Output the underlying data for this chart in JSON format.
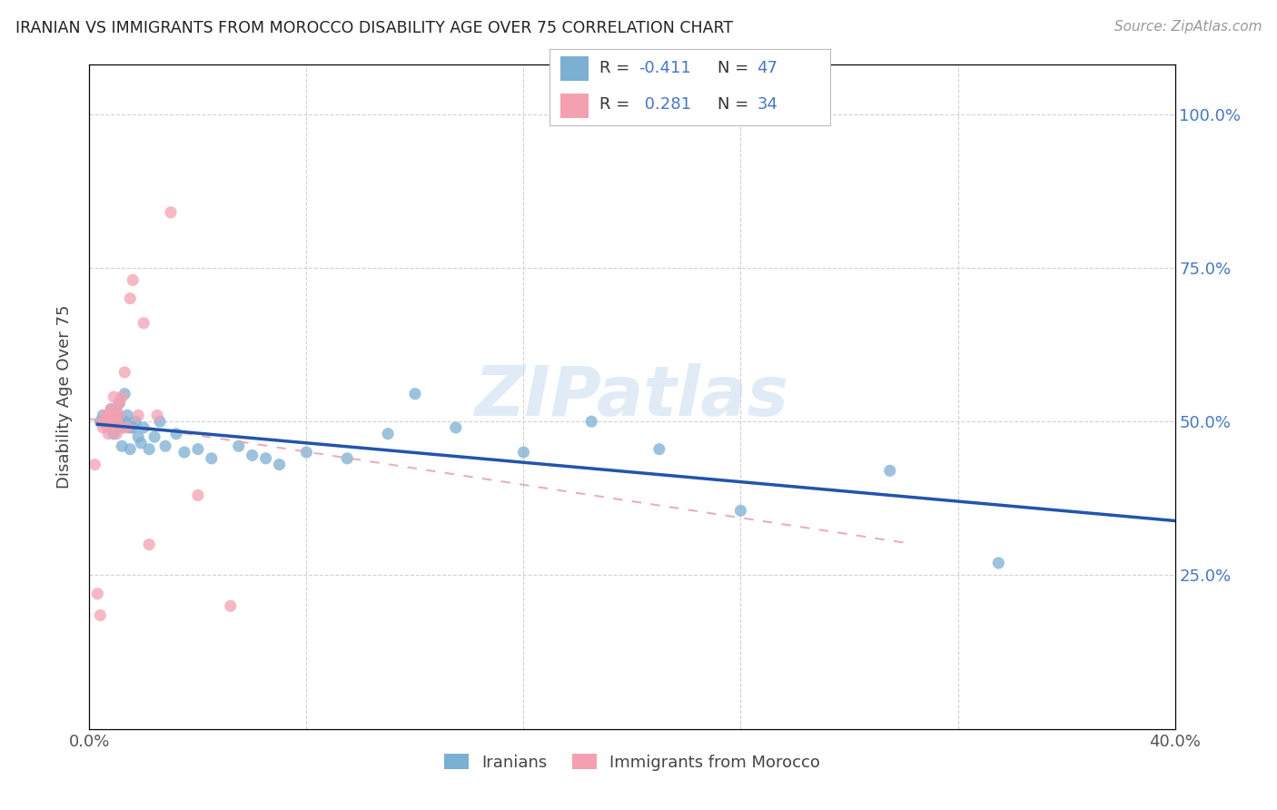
{
  "title": "IRANIAN VS IMMIGRANTS FROM MOROCCO DISABILITY AGE OVER 75 CORRELATION CHART",
  "source": "Source: ZipAtlas.com",
  "ylabel": "Disability Age Over 75",
  "xlim": [
    0.0,
    0.4
  ],
  "ylim": [
    0.0,
    1.08
  ],
  "ytick_vals": [
    0.25,
    0.5,
    0.75,
    1.0
  ],
  "xtick_vals": [
    0.0,
    0.08,
    0.16,
    0.24,
    0.32,
    0.4
  ],
  "legend_labels": [
    "Iranians",
    "Immigrants from Morocco"
  ],
  "blue_scatter_color": "#7BAFD4",
  "pink_scatter_color": "#F4A0B0",
  "blue_line_color": "#2255AA",
  "pink_line_color": "#E8A0B0",
  "r_blue": -0.411,
  "n_blue": 47,
  "r_pink": 0.281,
  "n_pink": 34,
  "watermark": "ZIPatlas",
  "right_tick_color": "#4477CC",
  "iranians_x": [
    0.004,
    0.005,
    0.006,
    0.007,
    0.008,
    0.008,
    0.009,
    0.009,
    0.01,
    0.01,
    0.011,
    0.011,
    0.012,
    0.012,
    0.013,
    0.013,
    0.014,
    0.015,
    0.015,
    0.016,
    0.017,
    0.018,
    0.019,
    0.02,
    0.022,
    0.024,
    0.026,
    0.028,
    0.032,
    0.035,
    0.04,
    0.045,
    0.055,
    0.06,
    0.065,
    0.07,
    0.08,
    0.095,
    0.11,
    0.12,
    0.135,
    0.16,
    0.185,
    0.21,
    0.24,
    0.295,
    0.335
  ],
  "iranians_y": [
    0.5,
    0.51,
    0.495,
    0.51,
    0.52,
    0.49,
    0.505,
    0.48,
    0.515,
    0.49,
    0.53,
    0.5,
    0.49,
    0.46,
    0.545,
    0.5,
    0.51,
    0.49,
    0.455,
    0.49,
    0.5,
    0.475,
    0.465,
    0.49,
    0.455,
    0.475,
    0.5,
    0.46,
    0.48,
    0.45,
    0.455,
    0.44,
    0.46,
    0.445,
    0.44,
    0.43,
    0.45,
    0.44,
    0.48,
    0.545,
    0.49,
    0.45,
    0.5,
    0.455,
    0.355,
    0.42,
    0.27
  ],
  "morocco_x": [
    0.002,
    0.003,
    0.004,
    0.005,
    0.005,
    0.006,
    0.006,
    0.007,
    0.007,
    0.007,
    0.008,
    0.008,
    0.008,
    0.009,
    0.009,
    0.009,
    0.01,
    0.01,
    0.01,
    0.011,
    0.011,
    0.012,
    0.012,
    0.013,
    0.014,
    0.015,
    0.016,
    0.018,
    0.02,
    0.022,
    0.025,
    0.03,
    0.04,
    0.052
  ],
  "morocco_y": [
    0.43,
    0.22,
    0.185,
    0.5,
    0.49,
    0.51,
    0.5,
    0.51,
    0.49,
    0.48,
    0.52,
    0.51,
    0.5,
    0.54,
    0.505,
    0.49,
    0.52,
    0.5,
    0.48,
    0.51,
    0.53,
    0.49,
    0.54,
    0.58,
    0.49,
    0.7,
    0.73,
    0.51,
    0.66,
    0.3,
    0.51,
    0.84,
    0.38,
    0.2
  ]
}
